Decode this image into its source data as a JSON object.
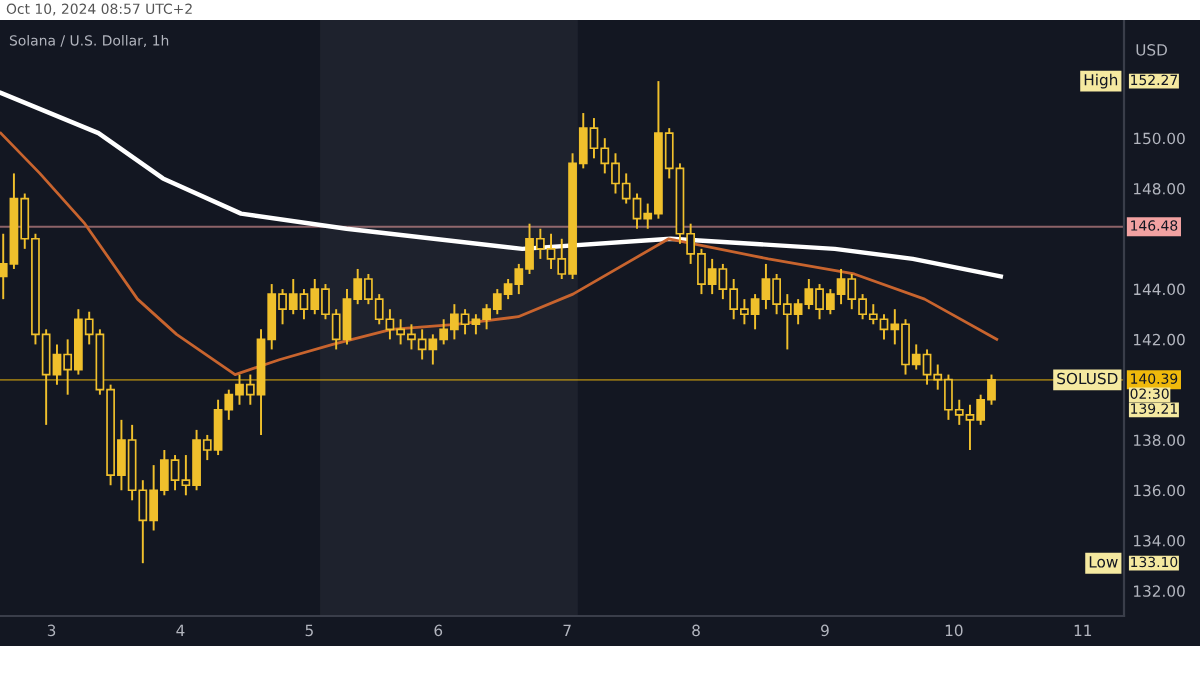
{
  "chart_data": {
    "type": "candlestick",
    "title": "Solana / U.S. Dollar, 1h",
    "ylabel": "USD",
    "color": "#f0c02c",
    "x": [
      2.625,
      2.708,
      2.792,
      2.875,
      2.958,
      3.042,
      3.125,
      3.208,
      3.292,
      3.375,
      3.458,
      3.542,
      3.625,
      3.708,
      3.792,
      3.875,
      3.958,
      4.042,
      4.125,
      4.208,
      4.292,
      4.375,
      4.458,
      4.542,
      4.625,
      4.708,
      4.792,
      4.875,
      4.958,
      5.042,
      5.125,
      5.208,
      5.292,
      5.375,
      5.458,
      5.542,
      5.625,
      5.708,
      5.792,
      5.875,
      5.958,
      6.042,
      6.125,
      6.208,
      6.292,
      6.375,
      6.458,
      6.542,
      6.625,
      6.708,
      6.792,
      6.875,
      6.958,
      7.042,
      7.125,
      7.208,
      7.292,
      7.375,
      7.458,
      7.542,
      7.625,
      7.708,
      7.792,
      7.875,
      7.958,
      8.042,
      8.125,
      8.208,
      8.292,
      8.375,
      8.458,
      8.542,
      8.625,
      8.708,
      8.792,
      8.875,
      8.958,
      9.042,
      9.125,
      9.208,
      9.292,
      9.375,
      9.458,
      9.542,
      9.625,
      9.708,
      9.792,
      9.875,
      9.958,
      10.042,
      10.125,
      10.208,
      10.292
    ],
    "ohlc": [
      [
        144.5,
        146.2,
        143.6,
        145.0
      ],
      [
        145.0,
        148.6,
        144.8,
        147.6
      ],
      [
        147.6,
        147.8,
        145.6,
        146.0
      ],
      [
        146.0,
        146.2,
        141.8,
        142.2
      ],
      [
        142.2,
        142.4,
        138.6,
        140.6
      ],
      [
        140.6,
        141.8,
        140.2,
        141.4
      ],
      [
        141.4,
        142.0,
        139.8,
        140.8
      ],
      [
        140.8,
        143.2,
        140.6,
        142.8
      ],
      [
        142.8,
        143.1,
        141.8,
        142.2
      ],
      [
        142.2,
        142.4,
        139.8,
        140.0
      ],
      [
        140.0,
        140.2,
        136.2,
        136.6
      ],
      [
        136.6,
        138.8,
        136.0,
        138.0
      ],
      [
        138.0,
        138.6,
        135.6,
        136.0
      ],
      [
        136.0,
        136.4,
        133.1,
        134.8
      ],
      [
        134.8,
        137.0,
        134.4,
        136.0
      ],
      [
        136.0,
        137.6,
        135.8,
        137.2
      ],
      [
        137.2,
        137.4,
        136.0,
        136.4
      ],
      [
        136.4,
        137.4,
        135.8,
        136.2
      ],
      [
        136.2,
        138.4,
        136.0,
        138.0
      ],
      [
        138.0,
        138.2,
        137.2,
        137.6
      ],
      [
        137.6,
        139.6,
        137.4,
        139.2
      ],
      [
        139.2,
        140.0,
        138.8,
        139.8
      ],
      [
        139.8,
        140.6,
        139.4,
        140.2
      ],
      [
        140.2,
        140.6,
        139.4,
        139.8
      ],
      [
        139.8,
        142.4,
        138.2,
        142.0
      ],
      [
        142.0,
        144.2,
        141.6,
        143.8
      ],
      [
        143.8,
        144.0,
        142.6,
        143.2
      ],
      [
        143.2,
        144.4,
        143.0,
        143.8
      ],
      [
        143.8,
        144.0,
        142.8,
        143.2
      ],
      [
        143.2,
        144.4,
        143.0,
        144.0
      ],
      [
        144.0,
        144.2,
        142.8,
        143.0
      ],
      [
        143.0,
        143.2,
        141.6,
        142.0
      ],
      [
        142.0,
        144.0,
        141.8,
        143.6
      ],
      [
        143.6,
        144.8,
        143.4,
        144.4
      ],
      [
        144.4,
        144.6,
        143.4,
        143.6
      ],
      [
        143.6,
        143.8,
        142.6,
        142.8
      ],
      [
        142.8,
        143.2,
        142.0,
        142.4
      ],
      [
        142.4,
        142.8,
        141.8,
        142.2
      ],
      [
        142.2,
        142.6,
        141.6,
        142.0
      ],
      [
        142.0,
        142.4,
        141.2,
        141.6
      ],
      [
        141.6,
        142.2,
        141.0,
        142.0
      ],
      [
        142.0,
        142.8,
        141.8,
        142.4
      ],
      [
        142.4,
        143.4,
        142.0,
        143.0
      ],
      [
        143.0,
        143.2,
        142.2,
        142.6
      ],
      [
        142.6,
        143.0,
        142.2,
        142.8
      ],
      [
        142.8,
        143.4,
        142.4,
        143.2
      ],
      [
        143.2,
        144.0,
        143.0,
        143.8
      ],
      [
        143.8,
        144.4,
        143.6,
        144.2
      ],
      [
        144.2,
        145.0,
        143.8,
        144.8
      ],
      [
        144.8,
        146.6,
        144.6,
        146.0
      ],
      [
        146.0,
        146.4,
        145.2,
        145.6
      ],
      [
        145.6,
        146.2,
        144.8,
        145.2
      ],
      [
        145.2,
        146.0,
        144.4,
        144.6
      ],
      [
        144.6,
        149.4,
        144.4,
        149.0
      ],
      [
        149.0,
        151.0,
        148.8,
        150.4
      ],
      [
        150.4,
        150.8,
        149.2,
        149.6
      ],
      [
        149.6,
        150.0,
        148.6,
        149.0
      ],
      [
        149.0,
        149.4,
        147.8,
        148.2
      ],
      [
        148.2,
        148.6,
        147.4,
        147.6
      ],
      [
        147.6,
        147.8,
        146.4,
        146.8
      ],
      [
        146.8,
        147.4,
        146.4,
        147.0
      ],
      [
        147.0,
        152.27,
        146.8,
        150.2
      ],
      [
        150.2,
        150.4,
        148.4,
        148.8
      ],
      [
        148.8,
        149.0,
        145.8,
        146.2
      ],
      [
        146.2,
        146.6,
        145.0,
        145.4
      ],
      [
        145.4,
        145.6,
        143.8,
        144.2
      ],
      [
        144.2,
        145.2,
        143.8,
        144.8
      ],
      [
        144.8,
        145.0,
        143.6,
        144.0
      ],
      [
        144.0,
        144.4,
        142.8,
        143.2
      ],
      [
        143.2,
        143.6,
        142.6,
        143.0
      ],
      [
        143.0,
        143.8,
        142.4,
        143.6
      ],
      [
        143.6,
        145.0,
        143.2,
        144.4
      ],
      [
        144.4,
        144.6,
        143.0,
        143.4
      ],
      [
        143.4,
        143.8,
        141.6,
        143.0
      ],
      [
        143.0,
        143.6,
        142.6,
        143.4
      ],
      [
        143.4,
        144.4,
        143.2,
        144.0
      ],
      [
        144.0,
        144.2,
        142.8,
        143.2
      ],
      [
        143.2,
        144.0,
        143.0,
        143.8
      ],
      [
        143.8,
        144.8,
        143.4,
        144.4
      ],
      [
        144.4,
        144.6,
        143.2,
        143.6
      ],
      [
        143.6,
        143.8,
        142.8,
        143.0
      ],
      [
        143.0,
        143.4,
        142.6,
        142.8
      ],
      [
        142.8,
        143.0,
        142.0,
        142.4
      ],
      [
        142.4,
        143.2,
        141.8,
        142.6
      ],
      [
        142.6,
        142.8,
        140.6,
        141.0
      ],
      [
        141.0,
        141.8,
        140.8,
        141.4
      ],
      [
        141.4,
        141.6,
        140.2,
        140.6
      ],
      [
        140.6,
        141.0,
        140.0,
        140.4
      ],
      [
        140.4,
        140.6,
        138.8,
        139.2
      ],
      [
        139.2,
        139.6,
        138.6,
        139.0
      ],
      [
        139.0,
        139.4,
        137.6,
        138.8
      ],
      [
        138.8,
        139.8,
        138.6,
        139.6
      ],
      [
        139.6,
        140.6,
        139.4,
        140.39
      ]
    ],
    "series": [
      {
        "type": "line",
        "color": "#ffffff",
        "x": [
          2.606,
          3.364,
          3.864,
          4.47,
          5.288,
          6.652,
          7.803,
          9.076,
          9.682,
          10.364
        ],
        "values": [
          151.8,
          150.2,
          148.4,
          147.0,
          146.4,
          145.6,
          146.0,
          145.6,
          145.2,
          144.5
        ]
      },
      {
        "type": "line",
        "color": "#c8642e",
        "x": [
          2.606,
          2.909,
          3.258,
          3.667,
          3.97,
          4.424,
          4.773,
          5.182,
          5.636,
          6.136,
          6.621,
          7.045,
          7.788,
          8.561,
          9.227,
          9.773,
          10.333
        ],
        "values": [
          150.2,
          148.6,
          146.6,
          143.6,
          142.2,
          140.6,
          141.2,
          141.8,
          142.4,
          142.6,
          142.9,
          143.8,
          146.0,
          145.2,
          144.6,
          143.6,
          142.0
        ]
      }
    ],
    "xlim": [
      2.6,
      11.32
    ],
    "ylim": [
      131.0,
      154.7
    ],
    "xticks": [
      3,
      4,
      5,
      6,
      7,
      8,
      9,
      10,
      11
    ],
    "yticks": [
      {
        "value": 132,
        "label": "132.00"
      },
      {
        "value": 134,
        "label": "134.00"
      },
      {
        "value": 136,
        "label": "136.00"
      },
      {
        "value": 138,
        "label": "138.00"
      },
      {
        "value": 142,
        "label": "142.00"
      },
      {
        "value": 144,
        "label": "144.00"
      },
      {
        "value": 148,
        "label": "148.00"
      },
      {
        "value": 150,
        "label": "150.00"
      }
    ],
    "bands": [
      {
        "axis": "x",
        "from": 5.083,
        "to": 7.083,
        "color": "#1e222d"
      }
    ],
    "ref_lines": [
      {
        "axis": "y",
        "value": 146.48,
        "label": "146.48",
        "color": "#f2a2a2"
      },
      {
        "axis": "y",
        "value": 140.39,
        "label": "140.39",
        "color": "#f0b90b"
      }
    ],
    "annotations": [
      "Oct 10, 2024 08:57 UTC+2",
      "High",
      "152.27",
      "Low",
      "133.10",
      "SOLUSD",
      "02:30",
      "139.21"
    ],
    "grid": false
  }
}
